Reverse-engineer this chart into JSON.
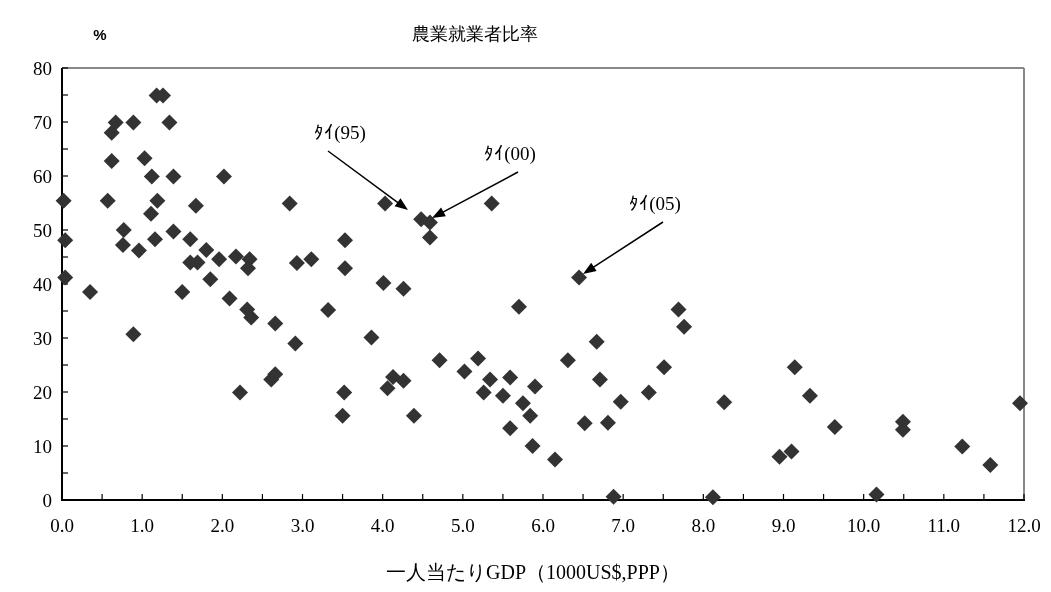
{
  "chart_data": {
    "type": "scatter",
    "title": "農業就業者比率",
    "ylabel": "%",
    "xlabel": "一人当たりGDP（1000US$,PPP）",
    "marker": "diamond",
    "color": "#333333",
    "grid": false,
    "xlim": [
      0,
      12
    ],
    "ylim": [
      0,
      80
    ],
    "xticks": [
      {
        "value": 0,
        "label": "0.0"
      },
      {
        "value": 0.5,
        "label": null
      },
      {
        "value": 1,
        "label": "1.0"
      },
      {
        "value": 1.5,
        "label": null
      },
      {
        "value": 2,
        "label": "2.0"
      },
      {
        "value": 2.5,
        "label": null
      },
      {
        "value": 3,
        "label": "3.0"
      },
      {
        "value": 3.5,
        "label": null
      },
      {
        "value": 4,
        "label": "4.0"
      },
      {
        "value": 4.5,
        "label": null
      },
      {
        "value": 5,
        "label": "5.0"
      },
      {
        "value": 5.5,
        "label": null
      },
      {
        "value": 6,
        "label": "6.0"
      },
      {
        "value": 6.5,
        "label": null
      },
      {
        "value": 7,
        "label": "7.0"
      },
      {
        "value": 7.5,
        "label": null
      },
      {
        "value": 8,
        "label": "8.0"
      },
      {
        "value": 8.5,
        "label": null
      },
      {
        "value": 9,
        "label": "9.0"
      },
      {
        "value": 9.5,
        "label": null
      },
      {
        "value": 10,
        "label": "10.0"
      },
      {
        "value": 10.5,
        "label": null
      },
      {
        "value": 11,
        "label": "11.0"
      },
      {
        "value": 11.5,
        "label": null
      },
      {
        "value": 12,
        "label": "12.0"
      }
    ],
    "yticks": [
      0,
      {
        "value": 5,
        "label": null
      },
      10,
      {
        "value": 15,
        "label": null
      },
      20,
      {
        "value": 25,
        "label": null
      },
      30,
      {
        "value": 35,
        "label": null
      },
      40,
      {
        "value": 45,
        "label": null
      },
      50,
      {
        "value": 55,
        "label": null
      },
      60,
      {
        "value": 65,
        "label": null
      },
      70,
      {
        "value": 75,
        "label": null
      },
      80
    ],
    "x": [
      0.02,
      0.04,
      0.04,
      0.35,
      0.57,
      0.62,
      0.62,
      0.67,
      0.77,
      0.76,
      0.89,
      0.89,
      0.96,
      1.03,
      1.12,
      1.11,
      1.19,
      1.16,
      1.18,
      1.26,
      1.34,
      1.39,
      1.39,
      1.5,
      1.67,
      1.6,
      1.6,
      1.69,
      1.8,
      1.85,
      1.96,
      2.02,
      2.09,
      2.17,
      2.22,
      2.31,
      2.34,
      2.32,
      2.36,
      2.66,
      2.61,
      2.66,
      2.84,
      2.91,
      2.93,
      3.11,
      3.32,
      3.53,
      3.53,
      3.52,
      3.5,
      4.03,
      4.48,
      4.59,
      4.59,
      5.36,
      4.01,
      4.26,
      5.7,
      6.45,
      3.86,
      4.71,
      4.13,
      4.26,
      4.06,
      4.39,
      5.02,
      5.19,
      5.34,
      5.26,
      5.5,
      5.59,
      5.59,
      5.75,
      5.84,
      5.9,
      5.87,
      6.15,
      6.31,
      6.67,
      6.71,
      6.52,
      6.81,
      6.97,
      6.88,
      7.32,
      7.51,
      7.69,
      7.76,
      8.12,
      8.26,
      9.14,
      9.33,
      8.95,
      9.1,
      9.64,
      10.16,
      10.49,
      10.49,
      11.23,
      11.58,
      11.95
    ],
    "values": [
      55.4,
      48.1,
      41.2,
      38.5,
      55.4,
      62.8,
      68.0,
      69.9,
      50.0,
      47.2,
      69.9,
      30.7,
      46.2,
      63.3,
      59.9,
      53.0,
      55.4,
      48.3,
      74.9,
      74.9,
      69.9,
      59.9,
      49.7,
      38.5,
      54.5,
      48.3,
      44.0,
      44.0,
      46.3,
      40.9,
      44.6,
      59.9,
      37.3,
      45.1,
      19.9,
      35.3,
      44.6,
      42.9,
      33.8,
      32.7,
      22.3,
      23.3,
      54.9,
      29.0,
      43.9,
      44.6,
      35.2,
      48.1,
      42.9,
      19.9,
      15.6,
      54.9,
      52.0,
      51.4,
      48.6,
      54.9,
      40.2,
      39.1,
      35.8,
      41.2,
      30.1,
      25.9,
      22.8,
      22.1,
      20.7,
      15.6,
      23.8,
      26.2,
      22.3,
      19.9,
      19.3,
      22.7,
      13.3,
      17.9,
      15.6,
      21.0,
      10.0,
      7.5,
      25.9,
      29.3,
      22.3,
      14.2,
      14.3,
      18.2,
      0.6,
      19.9,
      24.6,
      35.3,
      32.1,
      0.5,
      18.1,
      24.6,
      19.3,
      8.0,
      9.0,
      13.5,
      1.0,
      14.5,
      13.0,
      9.9,
      6.5,
      17.9
    ],
    "annotations": [
      "ﾀｲ(95)",
      "ﾀｲ(00)",
      "ﾀｲ(05)"
    ]
  }
}
